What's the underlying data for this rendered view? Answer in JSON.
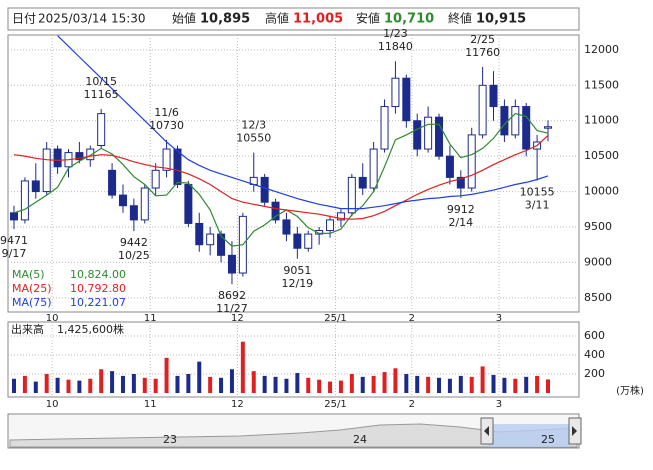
{
  "header": {
    "date_label": "日付",
    "date": "2025/03/14 15:30",
    "open_label": "始値",
    "open": "10,895",
    "high_label": "高値",
    "high": "11,005",
    "low_label": "安値",
    "low": "10,710",
    "close_label": "終値",
    "close": "10,915"
  },
  "chart_data": {
    "type": "candlestick",
    "categories": [
      null,
      null,
      null,
      null,
      "10",
      null,
      null,
      null,
      null,
      null,
      null,
      null,
      null,
      "11",
      null,
      null,
      null,
      null,
      null,
      null,
      null,
      "12",
      null,
      null,
      null,
      null,
      null,
      null,
      null,
      null,
      "25/1",
      null,
      null,
      null,
      null,
      null,
      null,
      "2",
      null,
      null,
      null,
      null,
      null,
      null,
      null,
      "3",
      null,
      null,
      null,
      null
    ],
    "open": [
      9700,
      9600,
      10150,
      10000,
      10600,
      10350,
      10550,
      10450,
      10650,
      10300,
      9950,
      9800,
      9600,
      10050,
      10300,
      10600,
      10100,
      9550,
      9250,
      9400,
      9100,
      8850,
      10100,
      10200,
      9850,
      9600,
      9400,
      9200,
      9400,
      9450,
      9600,
      9700,
      10200,
      10050,
      10600,
      11200,
      11600,
      11000,
      10600,
      11050,
      10500,
      10200,
      10050,
      10800,
      11500,
      11200,
      10800,
      11200,
      10600,
      10895
    ],
    "high": [
      9800,
      10200,
      10400,
      10700,
      10650,
      10600,
      10700,
      10650,
      11165,
      10400,
      10100,
      9900,
      10100,
      10400,
      10730,
      10650,
      10150,
      9700,
      9500,
      9450,
      9300,
      9700,
      10550,
      10250,
      9900,
      9700,
      9500,
      9450,
      9500,
      9650,
      9750,
      10250,
      10400,
      10700,
      11300,
      11840,
      11650,
      11100,
      11200,
      11100,
      10650,
      10300,
      10900,
      11760,
      11700,
      11300,
      11300,
      11250,
      10800,
      11005
    ],
    "low": [
      9471,
      9550,
      9900,
      9950,
      10250,
      10200,
      10400,
      10350,
      10600,
      9900,
      9700,
      9442,
      9550,
      9950,
      10200,
      10050,
      9500,
      9150,
      9100,
      9000,
      8692,
      8800,
      10000,
      9800,
      9550,
      9300,
      9051,
      9150,
      9250,
      9350,
      9500,
      9650,
      9950,
      10000,
      10550,
      11100,
      10900,
      10500,
      10550,
      10450,
      10100,
      9912,
      10000,
      10750,
      11000,
      10700,
      10750,
      10500,
      10155,
      10710
    ],
    "close": [
      9600,
      10150,
      10000,
      10600,
      10350,
      10550,
      10450,
      10600,
      11100,
      9950,
      9800,
      9600,
      10050,
      10300,
      10600,
      10100,
      9550,
      9250,
      9400,
      9100,
      8850,
      9650,
      10200,
      9850,
      9600,
      9400,
      9200,
      9400,
      9450,
      9600,
      9700,
      10200,
      10050,
      10600,
      11200,
      11600,
      11000,
      10600,
      11050,
      10500,
      10200,
      10050,
      10800,
      11500,
      11200,
      10800,
      11200,
      10600,
      10700,
      10915
    ],
    "up_color": "#ffffff",
    "down_color": "#1c2a8c",
    "outline_color": "#1c2a8c",
    "series": [
      {
        "name": "MA(5)",
        "color": "#2e8b2e",
        "value_label": "10,824.00",
        "values": [
          9700,
          9750,
          9850,
          9950,
          10060,
          10330,
          10430,
          10510,
          10610,
          10530,
          10380,
          10210,
          10100,
          9940,
          9950,
          10130,
          10120,
          9960,
          9740,
          9370,
          9230,
          9250,
          9440,
          9530,
          9650,
          9740,
          9650,
          9490,
          9410,
          9410,
          9470,
          9670,
          9800,
          10000,
          10350,
          10730,
          10800,
          10880,
          10950,
          10950,
          10670,
          10480,
          10520,
          10610,
          10750,
          10950,
          11100,
          11060,
          10860,
          10824
        ]
      },
      {
        "name": "MA(25)",
        "color": "#e02020",
        "value_label": "10,792.80",
        "values": [
          10520,
          10500,
          10470,
          10450,
          10440,
          10450,
          10470,
          10500,
          10520,
          10510,
          10470,
          10420,
          10380,
          10350,
          10330,
          10300,
          10250,
          10180,
          10100,
          10000,
          9900,
          9850,
          9820,
          9790,
          9760,
          9740,
          9720,
          9700,
          9680,
          9650,
          9620,
          9610,
          9620,
          9660,
          9720,
          9800,
          9880,
          9960,
          10030,
          10090,
          10140,
          10180,
          10230,
          10300,
          10380,
          10450,
          10520,
          10580,
          10650,
          10793
        ]
      },
      {
        "name": "MA(75)",
        "color": "#2040e0",
        "value_label": "10,221.07",
        "values": [
          null,
          null,
          null,
          null,
          12200,
          12050,
          11900,
          11750,
          11600,
          11450,
          11300,
          11150,
          11000,
          10850,
          10700,
          10570,
          10450,
          10370,
          10300,
          10250,
          10200,
          10150,
          10100,
          10050,
          10000,
          9950,
          9900,
          9860,
          9820,
          9790,
          9760,
          9760,
          9760,
          9780,
          9800,
          9830,
          9860,
          9880,
          9900,
          9910,
          9930,
          9940,
          9960,
          9990,
          10020,
          10060,
          10100,
          10130,
          10170,
          10221
        ]
      }
    ],
    "ylim": [
      8300,
      12210
    ],
    "yticks": [
      8500,
      9000,
      9500,
      10000,
      10500,
      11000,
      11500,
      12000
    ],
    "grid": true,
    "annotations": [
      {
        "date": "9/17",
        "value": 9471,
        "at": 0,
        "kind": "low"
      },
      {
        "date": "10/15",
        "value": 11165,
        "at": 8,
        "kind": "high"
      },
      {
        "date": "10/25",
        "value": 9442,
        "at": 11,
        "kind": "low"
      },
      {
        "date": "11/6",
        "value": 10730,
        "at": 14,
        "kind": "high"
      },
      {
        "date": "11/27",
        "value": 8692,
        "at": 20,
        "kind": "low"
      },
      {
        "date": "12/3",
        "value": 10550,
        "at": 22,
        "kind": "high"
      },
      {
        "date": "12/19",
        "value": 9051,
        "at": 26,
        "kind": "low"
      },
      {
        "date": "1/23",
        "value": 11840,
        "at": 35,
        "kind": "high"
      },
      {
        "date": "2/14",
        "value": 9912,
        "at": 41,
        "kind": "low"
      },
      {
        "date": "2/25",
        "value": 11760,
        "at": 43,
        "kind": "high"
      },
      {
        "date": "3/11",
        "value": 10155,
        "at": 48,
        "kind": "low"
      }
    ],
    "volume_title": "出来高",
    "volume_text": "1,425,600株",
    "volume_unit": "(万株)",
    "volume_up_color": "#e02020",
    "volume_down_color": "#1c2a8c",
    "volume": [
      150,
      180,
      120,
      200,
      160,
      140,
      130,
      150,
      250,
      230,
      180,
      200,
      160,
      150,
      370,
      180,
      200,
      330,
      170,
      160,
      250,
      540,
      230,
      180,
      170,
      150,
      210,
      160,
      140,
      120,
      130,
      200,
      170,
      180,
      220,
      260,
      200,
      180,
      170,
      160,
      150,
      180,
      170,
      280,
      190,
      160,
      150,
      170,
      180,
      142.56
    ],
    "volume_ylim": [
      0,
      747
    ],
    "volume_yticks": [
      200,
      400,
      600
    ]
  },
  "navigator": {
    "labels": [
      "23",
      "24",
      "25"
    ]
  }
}
